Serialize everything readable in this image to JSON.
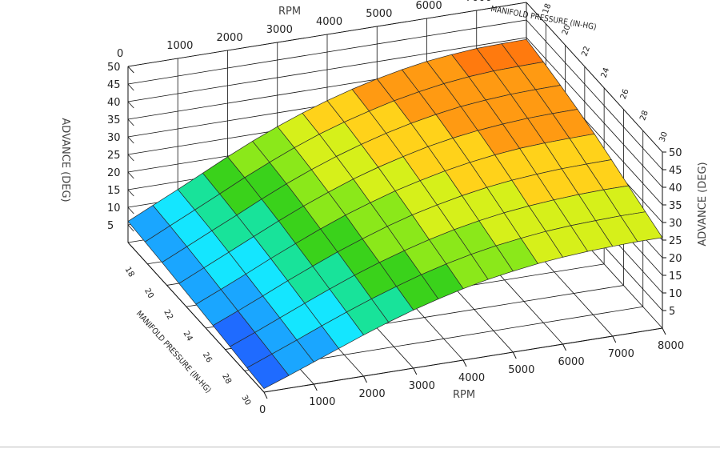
{
  "chart_data": {
    "type": "surface3d",
    "x_axis": {
      "label": "RPM",
      "ticks": [
        0,
        1000,
        2000,
        3000,
        4000,
        5000,
        6000,
        7000,
        8000
      ],
      "range": [
        0,
        8000
      ]
    },
    "y_axis": {
      "label": "MANIFOLD PRESSURE (IN-HG)",
      "ticks": [
        18,
        20,
        22,
        24,
        26,
        28,
        30
      ],
      "range": [
        16,
        30
      ]
    },
    "z_axis": {
      "label": "ADVANCE (DEG)",
      "ticks": [
        5,
        10,
        15,
        20,
        25,
        30,
        35,
        40,
        45,
        50
      ],
      "range": [
        0,
        50
      ]
    },
    "x_grid": [
      0,
      500,
      1000,
      1500,
      2000,
      2500,
      3000,
      3500,
      4000,
      4500,
      5000,
      5500,
      6000,
      6500,
      7000,
      7500,
      8000
    ],
    "y_grid": [
      16,
      17.75,
      19.5,
      21.25,
      23,
      24.75,
      26.5,
      28.25,
      30
    ],
    "z_values": [
      [
        6.0,
        9.4,
        12.8,
        16.3,
        19.8,
        23.1,
        26.1,
        28.8,
        31.2,
        33.3,
        35.1,
        36.6,
        37.8,
        38.6,
        39.2,
        39.4,
        39.5
      ],
      [
        5.5,
        8.9,
        12.3,
        15.7,
        19.2,
        22.4,
        25.4,
        28.1,
        30.4,
        32.4,
        34.2,
        35.6,
        36.8,
        37.6,
        38.1,
        38.3,
        38.4
      ],
      [
        5.0,
        8.3,
        11.7,
        15.0,
        18.4,
        21.6,
        24.5,
        27.1,
        29.4,
        31.4,
        33.1,
        34.5,
        35.6,
        36.3,
        36.8,
        37.0,
        37.1
      ],
      [
        4.3,
        7.6,
        10.9,
        14.2,
        17.5,
        20.6,
        23.4,
        26.0,
        28.2,
        30.1,
        31.8,
        33.1,
        34.1,
        34.8,
        35.3,
        35.5,
        35.6
      ],
      [
        3.7,
        6.8,
        10.0,
        13.3,
        16.4,
        19.4,
        22.2,
        24.6,
        26.8,
        28.6,
        30.2,
        31.5,
        32.5,
        33.2,
        33.6,
        33.8,
        33.9
      ],
      [
        3.0,
        6.0,
        9.1,
        12.3,
        15.3,
        18.2,
        20.8,
        23.2,
        25.3,
        27.0,
        28.5,
        29.7,
        30.6,
        31.2,
        31.6,
        31.8,
        31.9
      ],
      [
        2.3,
        5.2,
        8.2,
        11.2,
        14.1,
        16.9,
        19.4,
        21.6,
        23.6,
        25.3,
        26.7,
        27.8,
        28.6,
        29.2,
        29.6,
        29.8,
        29.8
      ],
      [
        1.6,
        4.4,
        7.2,
        10.1,
        12.9,
        15.5,
        17.9,
        20.1,
        22.0,
        23.6,
        24.9,
        25.9,
        26.7,
        27.2,
        27.5,
        27.7,
        27.7
      ],
      [
        1.0,
        3.6,
        6.3,
        9.0,
        11.7,
        14.2,
        16.5,
        18.5,
        20.3,
        21.8,
        23.0,
        24.0,
        24.7,
        25.2,
        25.5,
        25.7,
        25.7
      ]
    ],
    "colormap": [
      "#1f6bff",
      "#1aa6ff",
      "#14e6ff",
      "#18e39a",
      "#3ad21b",
      "#8be81a",
      "#d6f01a",
      "#ffd21a",
      "#ff9a12",
      "#ff7a0e"
    ]
  }
}
